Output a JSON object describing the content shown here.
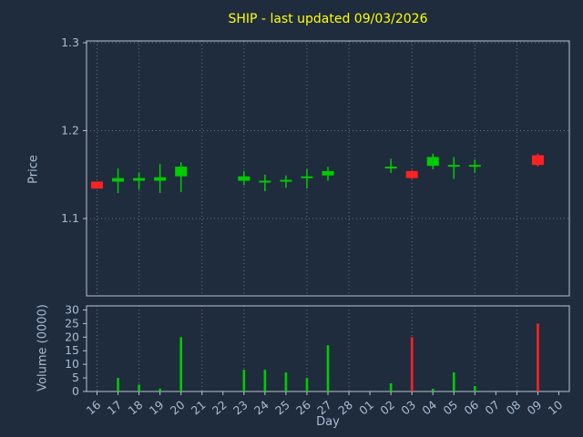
{
  "chart_data": {
    "type": "candlestick",
    "title": "SHIP - last updated 09/03/2026",
    "xlabel": "Day",
    "price_ylabel": "Price",
    "volume_ylabel": "Volume (0000)",
    "x_ticklabels": [
      "16",
      "17",
      "18",
      "19",
      "20",
      "21",
      "22",
      "23",
      "24",
      "25",
      "26",
      "27",
      "28",
      "01",
      "02",
      "03",
      "04",
      "05",
      "06",
      "07",
      "08",
      "09",
      "10"
    ],
    "x_gridline_days": [
      "16",
      "18",
      "21",
      "23",
      "26",
      "28",
      "03",
      "06",
      "08"
    ],
    "price_axis": {
      "min": 1.012,
      "max": 1.302,
      "ticks": [
        1.1,
        1.2,
        1.3
      ]
    },
    "volume_axis": {
      "min": 0,
      "max": 31.5,
      "ticks": [
        0,
        5,
        10,
        15,
        20,
        25,
        30
      ]
    },
    "colors": {
      "up": "#00cc00",
      "down": "#ff2222",
      "title": "#ffff00",
      "labels": "#a8bcd4",
      "grid": "#93a6b8",
      "axis_border": "#b9c4cf",
      "background": "#1f2c3d"
    },
    "candles": [
      {
        "day": "16",
        "open": 1.142,
        "high": 1.142,
        "low": 1.134,
        "close": 1.134,
        "volume": 0
      },
      {
        "day": "17",
        "open": 1.142,
        "high": 1.157,
        "low": 1.129,
        "close": 1.146,
        "volume": 5
      },
      {
        "day": "18",
        "open": 1.143,
        "high": 1.152,
        "low": 1.133,
        "close": 1.146,
        "volume": 2.5
      },
      {
        "day": "19",
        "open": 1.143,
        "high": 1.162,
        "low": 1.129,
        "close": 1.147,
        "volume": 1
      },
      {
        "day": "20",
        "open": 1.148,
        "high": 1.164,
        "low": 1.13,
        "close": 1.159,
        "volume": 20
      },
      {
        "day": "23",
        "open": 1.143,
        "high": 1.154,
        "low": 1.138,
        "close": 1.148,
        "volume": 8
      },
      {
        "day": "24",
        "open": 1.141,
        "high": 1.15,
        "low": 1.131,
        "close": 1.143,
        "volume": 8
      },
      {
        "day": "25",
        "open": 1.142,
        "high": 1.149,
        "low": 1.135,
        "close": 1.144,
        "volume": 7
      },
      {
        "day": "26",
        "open": 1.146,
        "high": 1.156,
        "low": 1.134,
        "close": 1.148,
        "volume": 5
      },
      {
        "day": "27",
        "open": 1.149,
        "high": 1.159,
        "low": 1.143,
        "close": 1.154,
        "volume": 17
      },
      {
        "day": "02",
        "open": 1.157,
        "high": 1.168,
        "low": 1.152,
        "close": 1.159,
        "volume": 3
      },
      {
        "day": "03",
        "open": 1.154,
        "high": 1.155,
        "low": 1.145,
        "close": 1.146,
        "volume": 20
      },
      {
        "day": "04",
        "open": 1.16,
        "high": 1.174,
        "low": 1.156,
        "close": 1.17,
        "volume": 1
      },
      {
        "day": "05",
        "open": 1.159,
        "high": 1.17,
        "low": 1.145,
        "close": 1.161,
        "volume": 7
      },
      {
        "day": "06",
        "open": 1.159,
        "high": 1.167,
        "low": 1.152,
        "close": 1.161,
        "volume": 2
      },
      {
        "day": "09",
        "open": 1.172,
        "high": 1.174,
        "low": 1.159,
        "close": 1.161,
        "volume": 25
      }
    ]
  }
}
